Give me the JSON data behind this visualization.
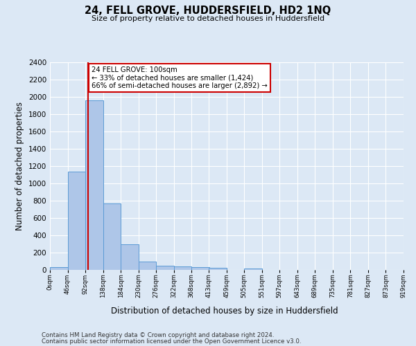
{
  "title": "24, FELL GROVE, HUDDERSFIELD, HD2 1NQ",
  "subtitle": "Size of property relative to detached houses in Huddersfield",
  "xlabel": "Distribution of detached houses by size in Huddersfield",
  "ylabel": "Number of detached properties",
  "footer_line1": "Contains HM Land Registry data © Crown copyright and database right 2024.",
  "footer_line2": "Contains public sector information licensed under the Open Government Licence v3.0.",
  "bar_edges": [
    0,
    46,
    92,
    138,
    184,
    230,
    276,
    322,
    368,
    413,
    459,
    505,
    551,
    597,
    643,
    689,
    735,
    781,
    827,
    873,
    919
  ],
  "bar_values": [
    35,
    1135,
    1960,
    770,
    300,
    100,
    50,
    40,
    35,
    25,
    0,
    20,
    0,
    0,
    0,
    0,
    0,
    0,
    0,
    0
  ],
  "bar_color": "#aec6e8",
  "bar_edgecolor": "#5b9bd5",
  "property_sqm": 100,
  "property_line_color": "#cc0000",
  "annotation_line1": "24 FELL GROVE: 100sqm",
  "annotation_line2": "← 33% of detached houses are smaller (1,424)",
  "annotation_line3": "66% of semi-detached houses are larger (2,892) →",
  "annotation_box_color": "#cc0000",
  "ylim": [
    0,
    2400
  ],
  "yticks": [
    0,
    200,
    400,
    600,
    800,
    1000,
    1200,
    1400,
    1600,
    1800,
    2000,
    2200,
    2400
  ],
  "bg_color": "#dce8f5",
  "plot_bg_color": "#dce8f5",
  "grid_color": "#ffffff"
}
